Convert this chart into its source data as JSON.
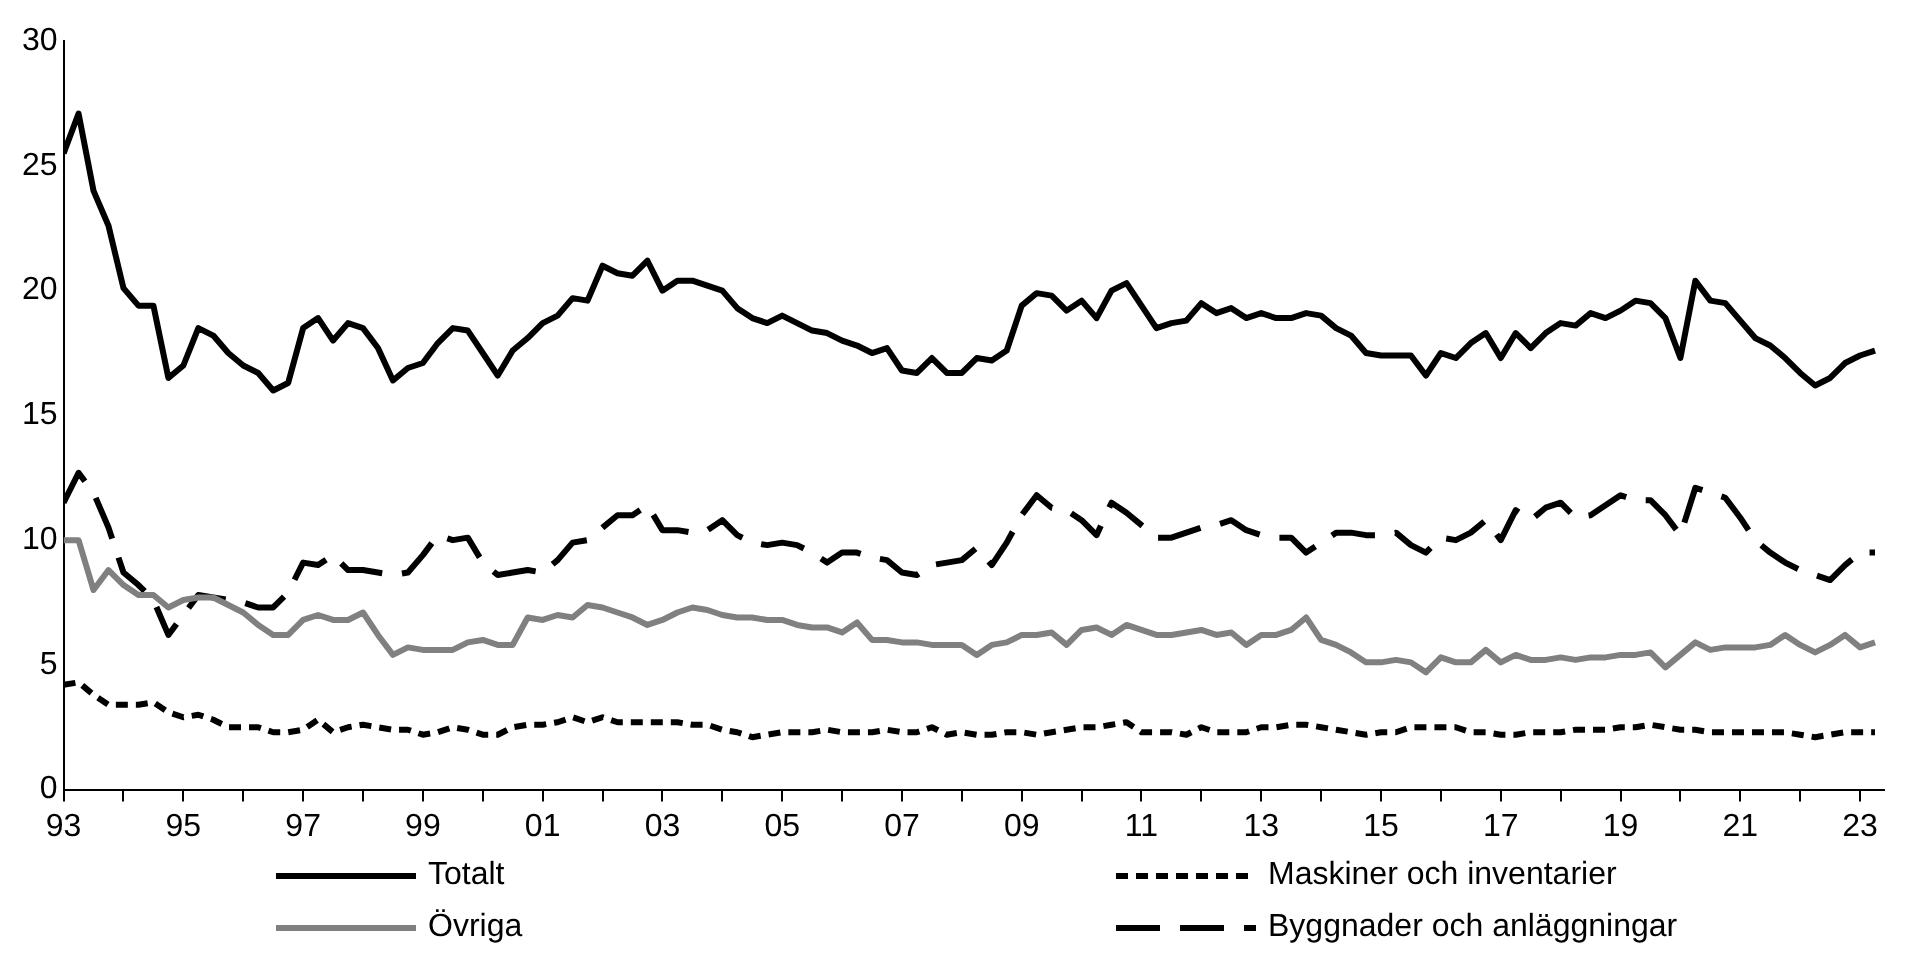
{
  "chart_data": {
    "type": "line",
    "x": [
      1993,
      1993.25,
      1993.5,
      1993.75,
      1994,
      1994.25,
      1994.5,
      1994.75,
      1995,
      1995.25,
      1995.5,
      1995.75,
      1996,
      1996.25,
      1996.5,
      1996.75,
      1997,
      1997.25,
      1997.5,
      1997.75,
      1998,
      1998.25,
      1998.5,
      1998.75,
      1999,
      1999.25,
      1999.5,
      1999.75,
      2000,
      2000.25,
      2000.5,
      2000.75,
      2001,
      2001.25,
      2001.5,
      2001.75,
      2002,
      2002.25,
      2002.5,
      2002.75,
      2003,
      2003.25,
      2003.5,
      2003.75,
      2004,
      2004.25,
      2004.5,
      2004.75,
      2005,
      2005.25,
      2005.5,
      2005.75,
      2006,
      2006.25,
      2006.5,
      2006.75,
      2007,
      2007.25,
      2007.5,
      2007.75,
      2008,
      2008.25,
      2008.5,
      2008.75,
      2009,
      2009.25,
      2009.5,
      2009.75,
      2010,
      2010.25,
      2010.5,
      2010.75,
      2011,
      2011.25,
      2011.5,
      2011.75,
      2012,
      2012.25,
      2012.5,
      2012.75,
      2013,
      2013.25,
      2013.5,
      2013.75,
      2014,
      2014.25,
      2014.5,
      2014.75,
      2015,
      2015.25,
      2015.5,
      2015.75,
      2016,
      2016.25,
      2016.5,
      2016.75,
      2017,
      2017.25,
      2017.5,
      2017.75,
      2018,
      2018.25,
      2018.5,
      2018.75,
      2019,
      2019.25,
      2019.5,
      2019.75,
      2020,
      2020.25,
      2020.5,
      2020.75,
      2021,
      2021.25,
      2021.5,
      2021.75,
      2022,
      2022.25,
      2022.5,
      2022.75,
      2023,
      2023.25
    ],
    "series": [
      {
        "name": "Totalt",
        "color": "#000000",
        "line_style": "solid",
        "values": [
          25.5,
          27.1,
          24.0,
          22.6,
          20.1,
          19.4,
          19.4,
          16.5,
          17.0,
          18.5,
          18.2,
          17.5,
          17.0,
          16.7,
          16.0,
          16.3,
          18.5,
          18.9,
          18.0,
          18.7,
          18.5,
          17.7,
          16.4,
          16.9,
          17.1,
          17.9,
          18.5,
          18.4,
          17.5,
          16.6,
          17.6,
          18.1,
          18.7,
          19.0,
          19.7,
          19.6,
          21.0,
          20.7,
          20.6,
          21.2,
          20.0,
          20.4,
          20.4,
          20.2,
          20.0,
          19.3,
          18.9,
          18.7,
          19.0,
          18.7,
          18.4,
          18.3,
          18.0,
          17.8,
          17.5,
          17.7,
          16.8,
          16.7,
          17.3,
          16.7,
          16.7,
          17.3,
          17.2,
          17.6,
          19.4,
          19.9,
          19.8,
          19.2,
          19.6,
          18.9,
          20.0,
          20.3,
          19.4,
          18.5,
          18.7,
          18.8,
          19.5,
          19.1,
          19.3,
          18.9,
          19.1,
          18.9,
          18.9,
          19.1,
          19.0,
          18.5,
          18.2,
          17.5,
          17.4,
          17.4,
          17.4,
          16.6,
          17.5,
          17.3,
          17.9,
          18.3,
          17.3,
          18.3,
          17.7,
          18.3,
          18.7,
          18.6,
          19.1,
          18.9,
          19.2,
          19.6,
          19.5,
          18.9,
          17.3,
          20.4,
          19.6,
          19.5,
          18.8,
          18.1,
          17.8,
          17.3,
          16.7,
          16.2,
          16.5,
          17.1,
          17.4,
          17.6
        ]
      },
      {
        "name": "Maskiner och inventarier",
        "color": "#000000",
        "line_style": "dotted",
        "values": [
          4.2,
          4.3,
          3.8,
          3.4,
          3.4,
          3.4,
          3.5,
          3.1,
          2.9,
          3.0,
          2.8,
          2.5,
          2.5,
          2.5,
          2.3,
          2.3,
          2.4,
          2.8,
          2.3,
          2.5,
          2.6,
          2.5,
          2.4,
          2.4,
          2.2,
          2.3,
          2.5,
          2.4,
          2.2,
          2.2,
          2.5,
          2.6,
          2.6,
          2.7,
          2.9,
          2.7,
          2.9,
          2.7,
          2.7,
          2.7,
          2.7,
          2.7,
          2.6,
          2.6,
          2.4,
          2.3,
          2.1,
          2.2,
          2.3,
          2.3,
          2.3,
          2.4,
          2.3,
          2.3,
          2.3,
          2.4,
          2.3,
          2.3,
          2.5,
          2.2,
          2.3,
          2.2,
          2.2,
          2.3,
          2.3,
          2.2,
          2.3,
          2.4,
          2.5,
          2.5,
          2.6,
          2.7,
          2.3,
          2.3,
          2.3,
          2.2,
          2.5,
          2.3,
          2.3,
          2.3,
          2.5,
          2.5,
          2.6,
          2.6,
          2.5,
          2.4,
          2.3,
          2.2,
          2.3,
          2.3,
          2.5,
          2.5,
          2.5,
          2.5,
          2.3,
          2.3,
          2.2,
          2.2,
          2.3,
          2.3,
          2.3,
          2.4,
          2.4,
          2.4,
          2.5,
          2.5,
          2.6,
          2.5,
          2.4,
          2.4,
          2.3,
          2.3,
          2.3,
          2.3,
          2.3,
          2.3,
          2.2,
          2.1,
          2.2,
          2.3,
          2.3,
          2.3
        ]
      },
      {
        "name": "Övriga",
        "color": "#808080",
        "line_style": "solid",
        "values": [
          10.0,
          10.0,
          8.0,
          8.8,
          8.2,
          7.8,
          7.8,
          7.3,
          7.6,
          7.7,
          7.7,
          7.4,
          7.1,
          6.6,
          6.2,
          6.2,
          6.8,
          7.0,
          6.8,
          6.8,
          7.1,
          6.2,
          5.4,
          5.7,
          5.6,
          5.6,
          5.6,
          5.9,
          6.0,
          5.8,
          5.8,
          6.9,
          6.8,
          7.0,
          6.9,
          7.4,
          7.3,
          7.1,
          6.9,
          6.6,
          6.8,
          7.1,
          7.3,
          7.2,
          7.0,
          6.9,
          6.9,
          6.8,
          6.8,
          6.6,
          6.5,
          6.5,
          6.3,
          6.7,
          6.0,
          6.0,
          5.9,
          5.9,
          5.8,
          5.8,
          5.8,
          5.4,
          5.8,
          5.9,
          6.2,
          6.2,
          6.3,
          5.8,
          6.4,
          6.5,
          6.2,
          6.6,
          6.4,
          6.2,
          6.2,
          6.3,
          6.4,
          6.2,
          6.3,
          5.8,
          6.2,
          6.2,
          6.4,
          6.9,
          6.0,
          5.8,
          5.5,
          5.1,
          5.1,
          5.2,
          5.1,
          4.7,
          5.3,
          5.1,
          5.1,
          5.6,
          5.1,
          5.4,
          5.2,
          5.2,
          5.3,
          5.2,
          5.3,
          5.3,
          5.4,
          5.4,
          5.5,
          4.9,
          5.4,
          5.9,
          5.6,
          5.7,
          5.7,
          5.7,
          5.8,
          6.2,
          5.8,
          5.5,
          5.8,
          6.2,
          5.7,
          5.9
        ]
      },
      {
        "name": "Byggnader och anläggningar",
        "color": "#000000",
        "line_style": "dashed",
        "values": [
          11.5,
          12.7,
          11.9,
          10.5,
          8.7,
          8.2,
          7.6,
          6.2,
          7.0,
          7.8,
          7.7,
          7.6,
          7.5,
          7.3,
          7.3,
          7.9,
          9.1,
          9.0,
          9.4,
          8.8,
          8.8,
          8.7,
          8.6,
          8.7,
          9.4,
          10.2,
          10.0,
          10.1,
          9.1,
          8.6,
          8.7,
          8.8,
          8.7,
          9.2,
          9.9,
          10.0,
          10.5,
          11.0,
          11.0,
          11.4,
          10.4,
          10.4,
          10.3,
          10.4,
          10.8,
          10.2,
          9.9,
          9.8,
          9.9,
          9.8,
          9.5,
          9.1,
          9.5,
          9.5,
          9.3,
          9.2,
          8.7,
          8.6,
          9.0,
          9.1,
          9.2,
          9.7,
          9.0,
          9.9,
          11.0,
          11.8,
          11.3,
          11.2,
          10.8,
          10.2,
          11.5,
          11.1,
          10.6,
          10.1,
          10.1,
          10.3,
          10.5,
          10.6,
          10.8,
          10.4,
          10.2,
          10.1,
          10.1,
          9.5,
          9.9,
          10.3,
          10.3,
          10.2,
          10.2,
          10.3,
          9.8,
          9.5,
          10.1,
          10.0,
          10.3,
          10.8,
          10.0,
          11.2,
          10.8,
          11.3,
          11.5,
          10.9,
          11.0,
          11.4,
          11.8,
          11.6,
          11.6,
          11.0,
          10.2,
          12.1,
          11.9,
          11.7,
          10.9,
          10.0,
          9.5,
          9.1,
          8.8,
          8.6,
          8.4,
          9.0,
          9.5,
          9.5
        ]
      }
    ],
    "xlim": [
      1993,
      2023.4
    ],
    "xticks": [
      {
        "value": 1993,
        "label": "93"
      },
      {
        "value": 1994,
        "label": null
      },
      {
        "value": 1995,
        "label": "95"
      },
      {
        "value": 1996,
        "label": null
      },
      {
        "value": 1997,
        "label": "97"
      },
      {
        "value": 1998,
        "label": null
      },
      {
        "value": 1999,
        "label": "99"
      },
      {
        "value": 2000,
        "label": null
      },
      {
        "value": 2001,
        "label": "01"
      },
      {
        "value": 2002,
        "label": null
      },
      {
        "value": 2003,
        "label": "03"
      },
      {
        "value": 2004,
        "label": null
      },
      {
        "value": 2005,
        "label": "05"
      },
      {
        "value": 2006,
        "label": null
      },
      {
        "value": 2007,
        "label": "07"
      },
      {
        "value": 2008,
        "label": null
      },
      {
        "value": 2009,
        "label": "09"
      },
      {
        "value": 2010,
        "label": null
      },
      {
        "value": 2011,
        "label": "11"
      },
      {
        "value": 2012,
        "label": null
      },
      {
        "value": 2013,
        "label": "13"
      },
      {
        "value": 2014,
        "label": null
      },
      {
        "value": 2015,
        "label": "15"
      },
      {
        "value": 2016,
        "label": null
      },
      {
        "value": 2017,
        "label": "17"
      },
      {
        "value": 2018,
        "label": null
      },
      {
        "value": 2019,
        "label": "19"
      },
      {
        "value": 2020,
        "label": null
      },
      {
        "value": 2021,
        "label": "21"
      },
      {
        "value": 2022,
        "label": null
      },
      {
        "value": 2023,
        "label": "23"
      }
    ],
    "ylim": [
      0,
      30
    ],
    "yticks": [
      0,
      5,
      10,
      15,
      20,
      25,
      30
    ],
    "grid": false,
    "legend": "bottom",
    "marker": "none"
  }
}
